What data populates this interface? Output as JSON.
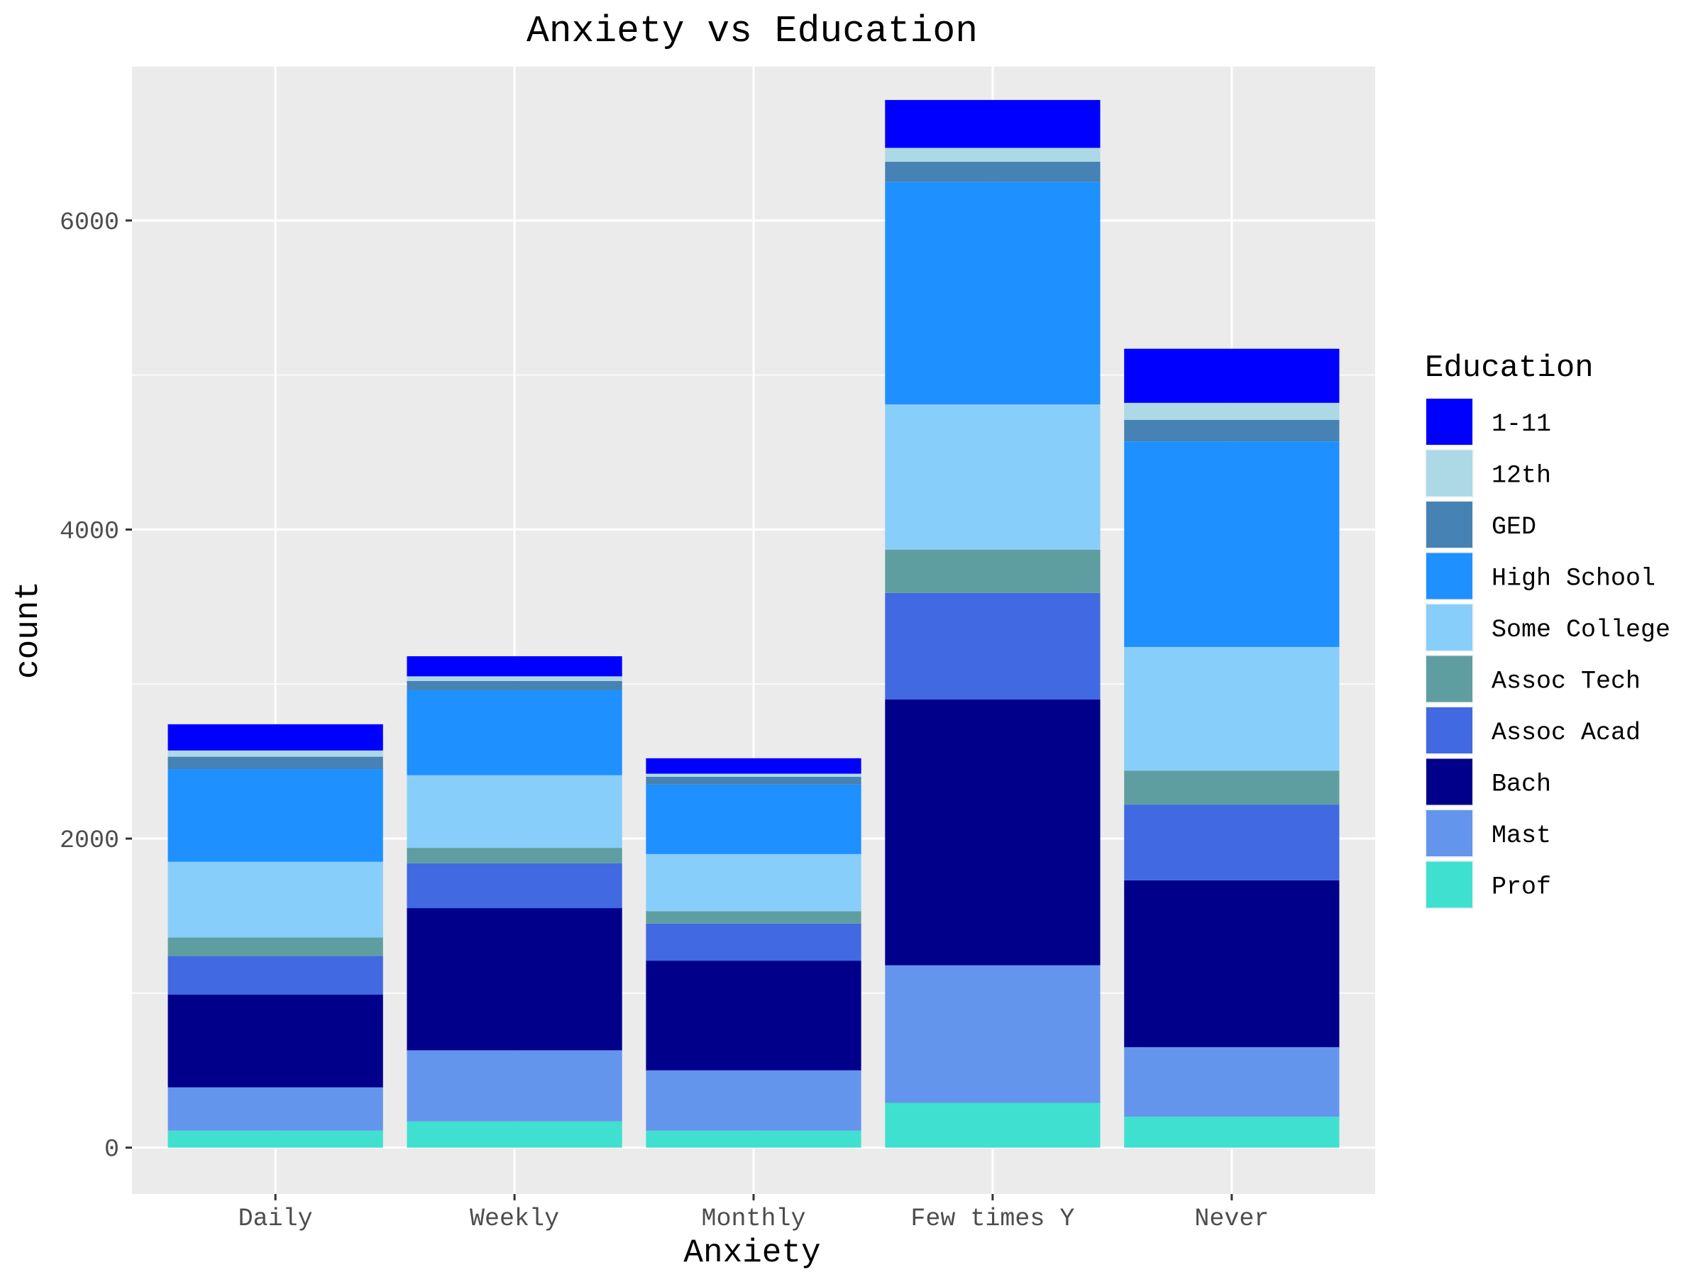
{
  "chart_data": {
    "type": "bar",
    "stacked": true,
    "title": "Anxiety vs Education",
    "xlabel": "Anxiety",
    "ylabel": "count",
    "ylim": [
      -300,
      7000
    ],
    "yticks": [
      0,
      2000,
      4000,
      6000
    ],
    "grid": true,
    "legend": {
      "title": "Education",
      "placement": "right"
    },
    "categories": [
      "Daily",
      "Weekly",
      "Monthly",
      "Few times Y",
      "Never"
    ],
    "series": [
      {
        "name": "Prof",
        "color": "#40E0D0",
        "values": [
          110,
          170,
          110,
          290,
          200
        ]
      },
      {
        "name": "Mast",
        "color": "#6495ED",
        "values": [
          280,
          460,
          390,
          890,
          450
        ]
      },
      {
        "name": "Bach",
        "color": "#00008B",
        "values": [
          600,
          920,
          710,
          1720,
          1080
        ]
      },
      {
        "name": "Assoc Acad",
        "color": "#4169E1",
        "values": [
          250,
          290,
          240,
          690,
          490
        ]
      },
      {
        "name": "Assoc Tech",
        "color": "#5F9EA0",
        "values": [
          120,
          100,
          80,
          280,
          220
        ]
      },
      {
        "name": "Some College",
        "color": "#87CEFA",
        "values": [
          490,
          470,
          370,
          940,
          800
        ]
      },
      {
        "name": "High School",
        "color": "#1E90FF",
        "values": [
          600,
          550,
          450,
          1440,
          1330
        ]
      },
      {
        "name": "GED",
        "color": "#4682B4",
        "values": [
          80,
          60,
          50,
          130,
          140
        ]
      },
      {
        "name": "12th",
        "color": "#ADD8E6",
        "values": [
          40,
          30,
          20,
          90,
          110
        ]
      },
      {
        "name": "1-11",
        "color": "#0000FF",
        "values": [
          170,
          130,
          100,
          310,
          350
        ]
      }
    ]
  }
}
